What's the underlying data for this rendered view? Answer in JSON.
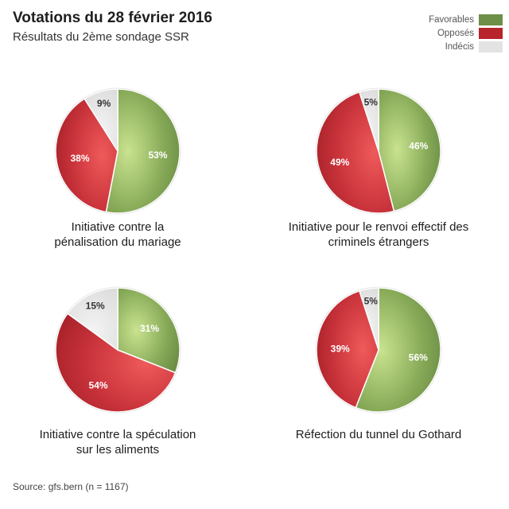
{
  "title": "Votations du 28 février 2016",
  "subtitle": "Résultats du 2ème sondage SSR",
  "legend": [
    {
      "label": "Favorables",
      "color": "#6e8f48"
    },
    {
      "label": "Opposés",
      "color": "#b8242c"
    },
    {
      "label": "Indécis",
      "color": "#e3e3e3"
    }
  ],
  "source": "Source: gfs.bern (n = 1167)",
  "chart_data": [
    {
      "type": "pie",
      "title": "Initiative contre la pénalisation du mariage",
      "title_lines": [
        "Initiative contre la",
        "pénalisation du mariage"
      ],
      "slices": [
        {
          "name": "Favorables",
          "value": 53,
          "label": "53%"
        },
        {
          "name": "Opposés",
          "value": 38,
          "label": "38%"
        },
        {
          "name": "Indécis",
          "value": 9,
          "label": "9%"
        }
      ]
    },
    {
      "type": "pie",
      "title": "Initiative pour le renvoi effectif des criminels étrangers",
      "title_lines": [
        "Initiative pour le renvoi effectif des",
        "criminels étrangers"
      ],
      "slices": [
        {
          "name": "Favorables",
          "value": 46,
          "label": "46%"
        },
        {
          "name": "Opposés",
          "value": 49,
          "label": "49%"
        },
        {
          "name": "Indécis",
          "value": 5,
          "label": "5%"
        }
      ]
    },
    {
      "type": "pie",
      "title": "Initiative contre la spéculation sur les aliments",
      "title_lines": [
        "Initiative contre la spéculation",
        "sur les aliments"
      ],
      "slices": [
        {
          "name": "Favorables",
          "value": 31,
          "label": "31%"
        },
        {
          "name": "Opposés",
          "value": 54,
          "label": "54%"
        },
        {
          "name": "Indécis",
          "value": 15,
          "label": "15%"
        }
      ]
    },
    {
      "type": "pie",
      "title": "Réfection du tunnel du Gothard",
      "title_lines": [
        "Réfection du tunnel du Gothard"
      ],
      "slices": [
        {
          "name": "Favorables",
          "value": 56,
          "label": "56%"
        },
        {
          "name": "Opposés",
          "value": 39,
          "label": "39%"
        },
        {
          "name": "Indécis",
          "value": 5,
          "label": "5%"
        }
      ]
    }
  ]
}
